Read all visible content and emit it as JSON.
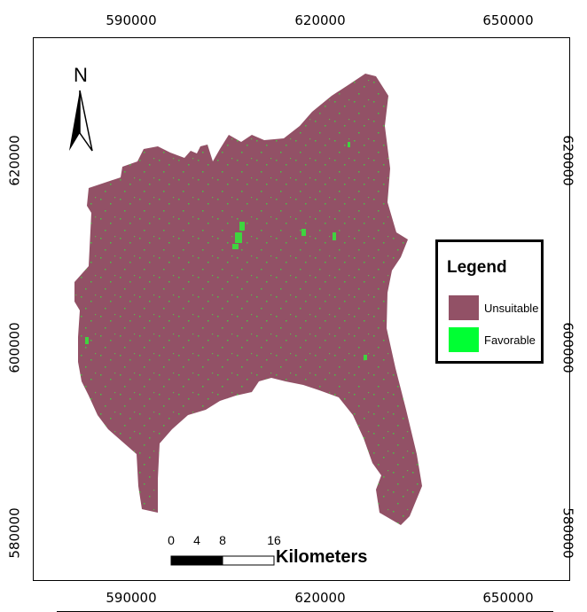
{
  "axes": {
    "x_ticks": [
      "590000",
      "620000",
      "650000"
    ],
    "y_ticks": [
      "620000",
      "600000",
      "580000"
    ]
  },
  "north_arrow": {
    "label": "N"
  },
  "legend": {
    "title": "Legend",
    "items": [
      {
        "label": "Unsuitable",
        "color": "#925166"
      },
      {
        "label": "Favorable",
        "color": "#00ff33"
      }
    ]
  },
  "scale_bar": {
    "ticks": [
      "0",
      "4",
      "8",
      "16"
    ],
    "unit": "Kilometers"
  },
  "map_colors": {
    "region": "#925166",
    "favorable": "#3fd43f"
  }
}
